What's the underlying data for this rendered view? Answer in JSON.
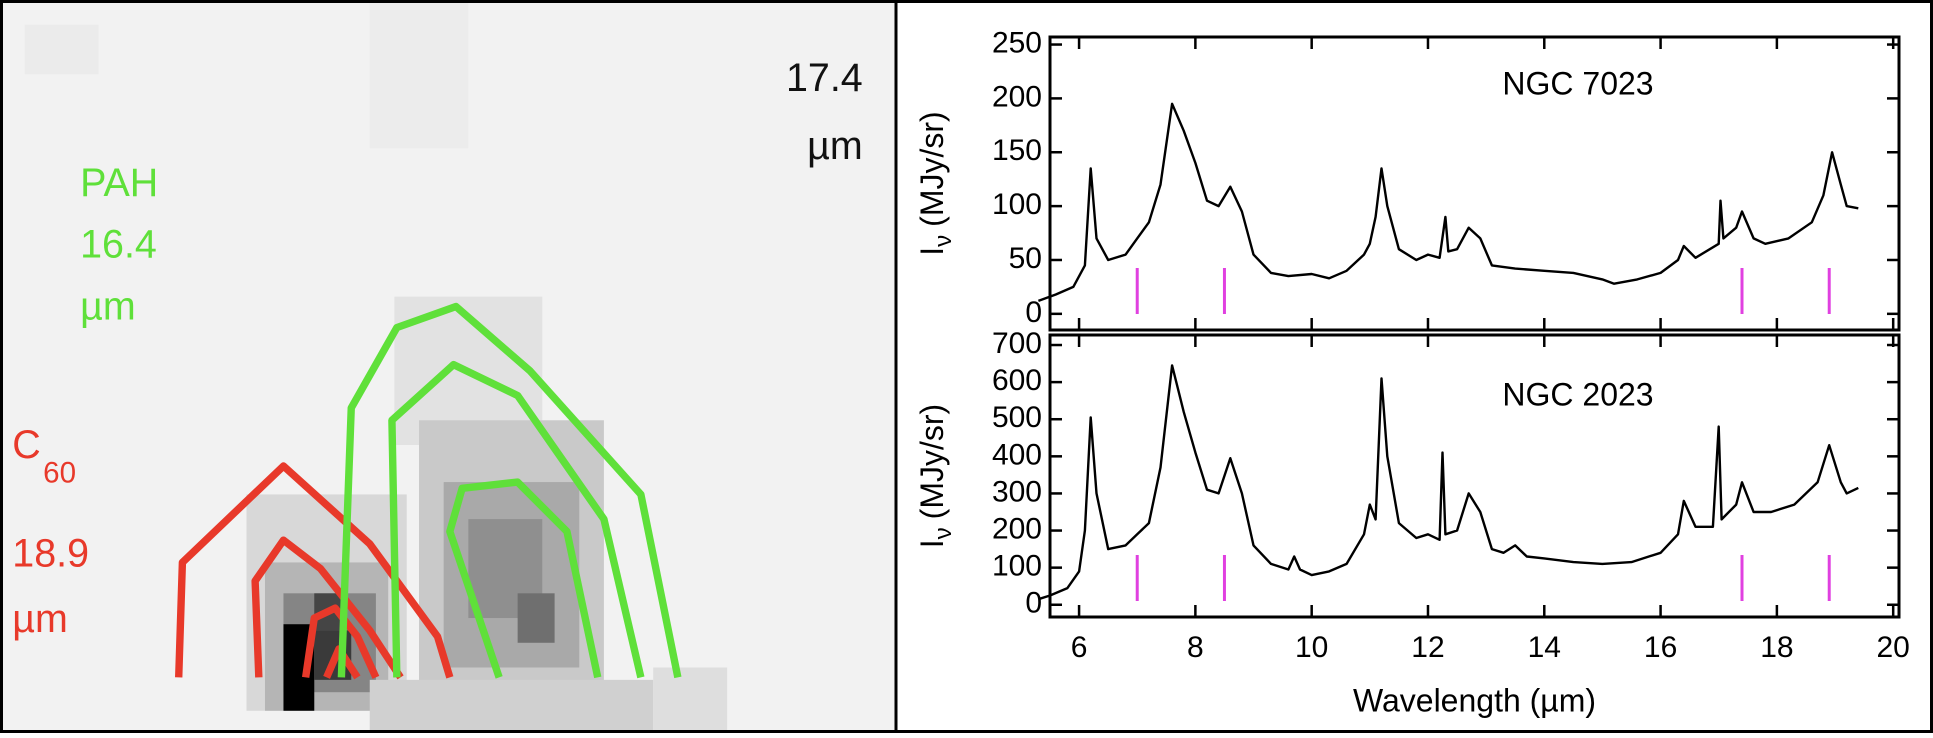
{
  "image": {
    "labels": {
      "right_wavelength": "17.4",
      "right_unit": "µm",
      "pah_name": "PAH",
      "pah_wavelength": "16.4",
      "pah_unit": "µm",
      "c60_name": "C",
      "c60_sub": "60",
      "c60_wavelength": "18.9",
      "c60_unit": "µm"
    }
  },
  "chart_data": [
    {
      "type": "line",
      "annotation": "NGC 7023",
      "ylabel": "I",
      "ylabel_sub": "ν",
      "ylabel_unit": "(MJy/sr)",
      "color": "#000000",
      "xlim": [
        5.5,
        20.1
      ],
      "xticks": [
        6,
        8,
        10,
        12,
        14,
        16,
        18,
        20
      ],
      "ylim": [
        -15,
        257
      ],
      "yticks": [
        0,
        50,
        100,
        150,
        200,
        250
      ],
      "markers": [
        7,
        8.5,
        17.4,
        18.9
      ],
      "marker_color": "#e040e0",
      "x": [
        5.3,
        5.6,
        5.9,
        6.1,
        6.2,
        6.3,
        6.5,
        6.8,
        7.0,
        7.2,
        7.4,
        7.6,
        7.8,
        8.0,
        8.2,
        8.4,
        8.6,
        8.8,
        9.0,
        9.3,
        9.6,
        10.0,
        10.3,
        10.6,
        10.9,
        11.0,
        11.1,
        11.2,
        11.3,
        11.5,
        11.8,
        12.0,
        12.2,
        12.3,
        12.35,
        12.5,
        12.7,
        12.9,
        13.1,
        13.5,
        14.0,
        14.5,
        15.0,
        15.2,
        15.6,
        16.0,
        16.3,
        16.4,
        16.6,
        17.0,
        17.03,
        17.08,
        17.3,
        17.4,
        17.6,
        17.8,
        18.2,
        18.6,
        18.8,
        18.95,
        19.1,
        19.2,
        19.4
      ],
      "values": [
        12,
        18,
        25,
        45,
        135,
        70,
        50,
        55,
        70,
        85,
        120,
        195,
        170,
        140,
        105,
        100,
        118,
        95,
        55,
        38,
        35,
        37,
        33,
        40,
        55,
        65,
        90,
        135,
        100,
        60,
        50,
        55,
        52,
        90,
        58,
        60,
        80,
        70,
        45,
        42,
        40,
        38,
        32,
        28,
        32,
        38,
        50,
        63,
        52,
        65,
        105,
        70,
        80,
        95,
        70,
        65,
        70,
        85,
        110,
        150,
        120,
        100,
        98
      ]
    },
    {
      "type": "line",
      "annotation": "NGC 2023",
      "ylabel": "I",
      "ylabel_sub": "ν",
      "ylabel_unit": "(MJy/sr)",
      "xlabel": "Wavelength (µm)",
      "color": "#000000",
      "xlim": [
        5.5,
        20.1
      ],
      "xticks": [
        6,
        8,
        10,
        12,
        14,
        16,
        18,
        20
      ],
      "ylim": [
        -33,
        727
      ],
      "yticks": [
        0,
        100,
        200,
        300,
        400,
        500,
        600,
        700
      ],
      "markers": [
        7,
        8.5,
        17.4,
        18.9
      ],
      "marker_color": "#e040e0",
      "x": [
        5.3,
        5.5,
        5.8,
        6.0,
        6.1,
        6.2,
        6.3,
        6.5,
        6.8,
        7.0,
        7.2,
        7.4,
        7.6,
        7.8,
        8.0,
        8.2,
        8.4,
        8.6,
        8.8,
        9.0,
        9.3,
        9.6,
        9.7,
        9.8,
        10.0,
        10.3,
        10.6,
        10.9,
        11.0,
        11.1,
        11.2,
        11.3,
        11.5,
        11.8,
        12.0,
        12.2,
        12.25,
        12.3,
        12.5,
        12.7,
        12.9,
        13.1,
        13.3,
        13.5,
        13.7,
        14.0,
        14.5,
        15.0,
        15.5,
        16.0,
        16.3,
        16.4,
        16.6,
        16.9,
        17.0,
        17.05,
        17.3,
        17.4,
        17.6,
        17.9,
        18.3,
        18.7,
        18.9,
        19.1,
        19.2,
        19.4
      ],
      "values": [
        15,
        25,
        45,
        90,
        200,
        505,
        300,
        150,
        160,
        190,
        220,
        370,
        645,
        520,
        410,
        310,
        300,
        395,
        300,
        160,
        110,
        95,
        130,
        95,
        80,
        90,
        110,
        190,
        270,
        230,
        610,
        400,
        220,
        180,
        190,
        175,
        410,
        190,
        200,
        300,
        250,
        150,
        140,
        160,
        130,
        125,
        115,
        110,
        115,
        140,
        190,
        280,
        210,
        210,
        480,
        230,
        270,
        330,
        250,
        250,
        270,
        330,
        430,
        330,
        300,
        315
      ]
    }
  ]
}
